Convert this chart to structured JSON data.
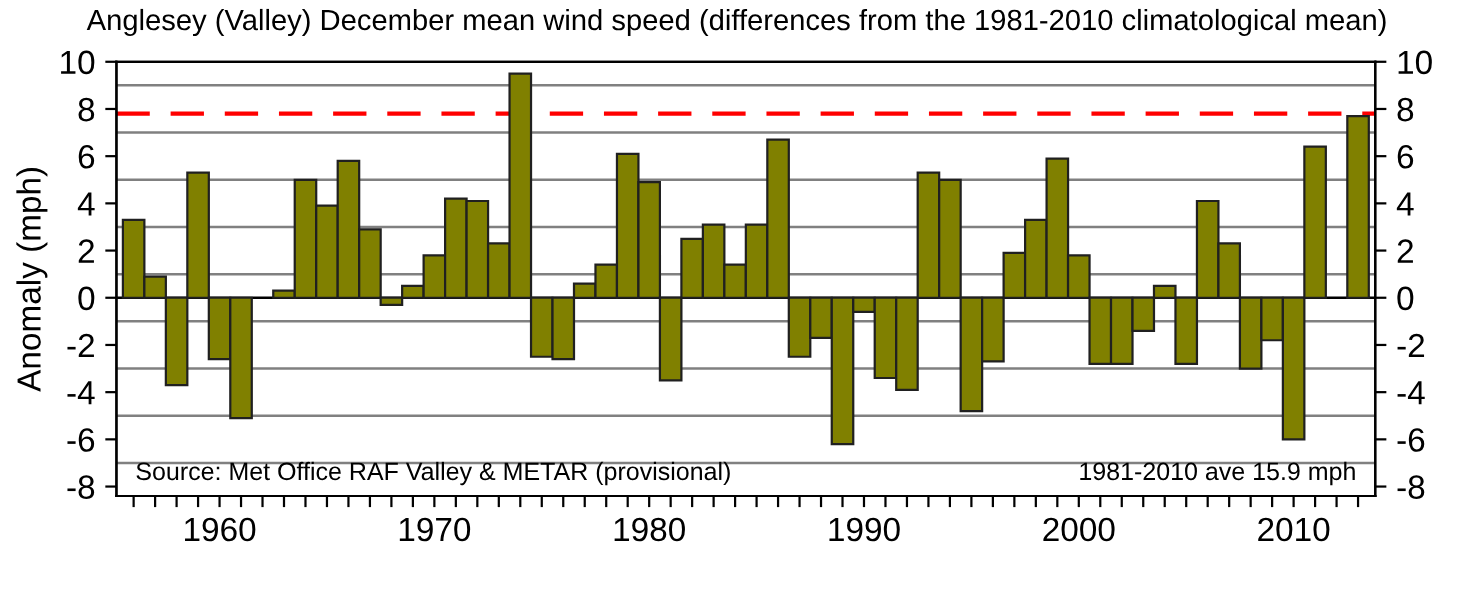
{
  "chart_data": {
    "type": "bar",
    "title": "Anglesey (Valley) December mean wind speed (differences from the 1981-2010 climatological mean)",
    "ylabel": "Anomaly (mph)",
    "x": [
      1956,
      1957,
      1958,
      1959,
      1960,
      1961,
      1962,
      1963,
      1964,
      1965,
      1966,
      1967,
      1968,
      1969,
      1970,
      1971,
      1972,
      1973,
      1974,
      1975,
      1976,
      1977,
      1978,
      1979,
      1980,
      1981,
      1982,
      1983,
      1984,
      1985,
      1986,
      1987,
      1988,
      1989,
      1990,
      1991,
      1992,
      1993,
      1994,
      1995,
      1996,
      1997,
      1998,
      1999,
      2000,
      2001,
      2002,
      2003,
      2004,
      2005,
      2006,
      2007,
      2008,
      2009,
      2010,
      2011,
      2012,
      2013
    ],
    "series": [
      {
        "color": "#808000",
        "values": [
          3.3,
          0.9,
          -3.7,
          5.3,
          -2.6,
          -5.1,
          null,
          0.3,
          5.0,
          3.9,
          5.8,
          2.9,
          -0.3,
          0.5,
          1.8,
          4.2,
          4.1,
          2.3,
          9.5,
          -2.5,
          -2.6,
          0.6,
          1.4,
          6.1,
          4.9,
          -3.5,
          2.5,
          3.1,
          1.4,
          3.1,
          6.7,
          -2.5,
          -1.7,
          -6.2,
          -0.6,
          -3.4,
          -3.9,
          5.3,
          5.0,
          -4.8,
          -2.7,
          1.9,
          3.3,
          5.9,
          1.8,
          -2.8,
          -2.8,
          -1.4,
          0.5,
          -2.8,
          4.1,
          2.3,
          -3.0,
          -1.8,
          -6.0,
          6.4,
          null,
          7.7
        ]
      }
    ],
    "xlim": [
      1955.2,
      2013.8
    ],
    "xticks": [
      {
        "value": 1956,
        "label": null
      },
      {
        "value": 1957,
        "label": null
      },
      {
        "value": 1958,
        "label": null
      },
      {
        "value": 1959,
        "label": null
      },
      1960,
      {
        "value": 1961,
        "label": null
      },
      {
        "value": 1962,
        "label": null
      },
      {
        "value": 1963,
        "label": null
      },
      {
        "value": 1964,
        "label": null
      },
      {
        "value": 1965,
        "label": null
      },
      {
        "value": 1966,
        "label": null
      },
      {
        "value": 1967,
        "label": null
      },
      {
        "value": 1968,
        "label": null
      },
      {
        "value": 1969,
        "label": null
      },
      1970,
      {
        "value": 1971,
        "label": null
      },
      {
        "value": 1972,
        "label": null
      },
      {
        "value": 1973,
        "label": null
      },
      {
        "value": 1974,
        "label": null
      },
      {
        "value": 1975,
        "label": null
      },
      {
        "value": 1976,
        "label": null
      },
      {
        "value": 1977,
        "label": null
      },
      {
        "value": 1978,
        "label": null
      },
      {
        "value": 1979,
        "label": null
      },
      1980,
      {
        "value": 1981,
        "label": null
      },
      {
        "value": 1982,
        "label": null
      },
      {
        "value": 1983,
        "label": null
      },
      {
        "value": 1984,
        "label": null
      },
      {
        "value": 1985,
        "label": null
      },
      {
        "value": 1986,
        "label": null
      },
      {
        "value": 1987,
        "label": null
      },
      {
        "value": 1988,
        "label": null
      },
      {
        "value": 1989,
        "label": null
      },
      1990,
      {
        "value": 1991,
        "label": null
      },
      {
        "value": 1992,
        "label": null
      },
      {
        "value": 1993,
        "label": null
      },
      {
        "value": 1994,
        "label": null
      },
      {
        "value": 1995,
        "label": null
      },
      {
        "value": 1996,
        "label": null
      },
      {
        "value": 1997,
        "label": null
      },
      {
        "value": 1998,
        "label": null
      },
      {
        "value": 1999,
        "label": null
      },
      2000,
      {
        "value": 2001,
        "label": null
      },
      {
        "value": 2002,
        "label": null
      },
      {
        "value": 2003,
        "label": null
      },
      {
        "value": 2004,
        "label": null
      },
      {
        "value": 2005,
        "label": null
      },
      {
        "value": 2006,
        "label": null
      },
      {
        "value": 2007,
        "label": null
      },
      {
        "value": 2008,
        "label": null
      },
      {
        "value": 2009,
        "label": null
      },
      2010,
      {
        "value": 2011,
        "label": null
      },
      {
        "value": 2012,
        "label": null
      },
      {
        "value": 2013,
        "label": null
      }
    ],
    "ylim": [
      -8.4,
      10
    ],
    "yticks": [
      -8,
      -6,
      -4,
      -2,
      0,
      2,
      4,
      6,
      8,
      10
    ],
    "y2lim": [
      -8.4,
      10
    ],
    "y2ticks": [
      -8,
      -6,
      -4,
      -2,
      0,
      2,
      4,
      6,
      8,
      10
    ],
    "ref_lines": [
      {
        "axis": "y",
        "value": 9,
        "label": null,
        "color": "#808080"
      },
      {
        "axis": "y",
        "value": 7,
        "label": null,
        "color": "#808080"
      },
      {
        "axis": "y",
        "value": 5,
        "label": null,
        "color": "#808080"
      },
      {
        "axis": "y",
        "value": 3,
        "label": null,
        "color": "#808080"
      },
      {
        "axis": "y",
        "value": 1,
        "label": null,
        "color": "#808080"
      },
      {
        "axis": "y",
        "value": 0,
        "label": null,
        "color": "#000000"
      },
      {
        "axis": "y",
        "value": -1,
        "label": null,
        "color": "#808080"
      },
      {
        "axis": "y",
        "value": -3,
        "label": null,
        "color": "#808080"
      },
      {
        "axis": "y",
        "value": -5,
        "label": null,
        "color": "#808080"
      },
      {
        "axis": "y",
        "value": -7,
        "label": null,
        "color": "#808080"
      },
      {
        "axis": "y",
        "value": 7.8,
        "label": null,
        "color": "#ff0000",
        "line_style": "dashed"
      }
    ],
    "annotations": [
      "Source: Met Office RAF Valley & METAR (provisional)",
      "1981-2010 ave 15.9 mph"
    ],
    "grid": false,
    "legend": false
  }
}
